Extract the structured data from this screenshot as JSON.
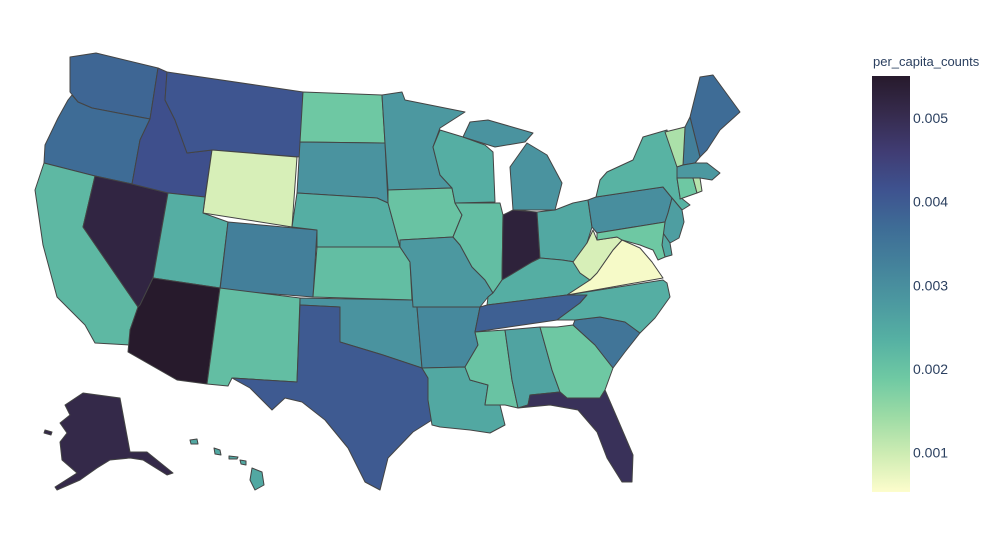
{
  "chart_data": {
    "type": "choropleth",
    "scope": "usa",
    "colorbar": {
      "title": "per_capita_counts",
      "range": [
        0.00053,
        0.0055
      ],
      "tickvals": [
        0.001,
        0.002,
        0.003,
        0.004,
        0.005
      ],
      "ticklabels": [
        "0.001",
        "0.002",
        "0.003",
        "0.004",
        "0.005"
      ],
      "colorscale": [
        "#fdfdcc",
        "#ceecb3",
        "#9cdba5",
        "#6fc9a3",
        "#56b1a3",
        "#4c99a0",
        "#44829b",
        "#3e6c96",
        "#3e528f",
        "#403c73",
        "#362b4d",
        "#271a2c"
      ]
    },
    "states": [
      {
        "state": "WA",
        "value": 0.0038
      },
      {
        "state": "OR",
        "value": 0.0037
      },
      {
        "state": "CA",
        "value": 0.0022
      },
      {
        "state": "NV",
        "value": 0.0052
      },
      {
        "state": "ID",
        "value": 0.0042
      },
      {
        "state": "MT",
        "value": 0.0041
      },
      {
        "state": "WY",
        "value": 0.0009
      },
      {
        "state": "UT",
        "value": 0.0024
      },
      {
        "state": "AZ",
        "value": 0.0055
      },
      {
        "state": "CO",
        "value": 0.0033
      },
      {
        "state": "NM",
        "value": 0.0021
      },
      {
        "state": "ND",
        "value": 0.0019
      },
      {
        "state": "SD",
        "value": 0.0029
      },
      {
        "state": "NE",
        "value": 0.0024
      },
      {
        "state": "KS",
        "value": 0.0021
      },
      {
        "state": "OK",
        "value": 0.0029
      },
      {
        "state": "TX",
        "value": 0.004
      },
      {
        "state": "MN",
        "value": 0.0028
      },
      {
        "state": "IA",
        "value": 0.002
      },
      {
        "state": "MO",
        "value": 0.0028
      },
      {
        "state": "AR",
        "value": 0.0031
      },
      {
        "state": "LA",
        "value": 0.0025
      },
      {
        "state": "WI",
        "value": 0.0024
      },
      {
        "state": "IL",
        "value": 0.0021
      },
      {
        "state": "MI",
        "value": 0.0029
      },
      {
        "state": "IN",
        "value": 0.0053
      },
      {
        "state": "OH",
        "value": 0.0025
      },
      {
        "state": "KY",
        "value": 0.0024
      },
      {
        "state": "TN",
        "value": 0.0039
      },
      {
        "state": "MS",
        "value": 0.002
      },
      {
        "state": "AL",
        "value": 0.0026
      },
      {
        "state": "GA",
        "value": 0.0019
      },
      {
        "state": "FL",
        "value": 0.0049
      },
      {
        "state": "SC",
        "value": 0.0035
      },
      {
        "state": "NC",
        "value": 0.0024
      },
      {
        "state": "VA",
        "value": 0.0006
      },
      {
        "state": "WV",
        "value": 0.0009
      },
      {
        "state": "PA",
        "value": 0.003
      },
      {
        "state": "NY",
        "value": 0.0023
      },
      {
        "state": "ME",
        "value": 0.0037
      },
      {
        "state": "NH",
        "value": 0.0033
      },
      {
        "state": "VT",
        "value": 0.0013
      },
      {
        "state": "MA",
        "value": 0.0028
      },
      {
        "state": "CT",
        "value": 0.0019
      },
      {
        "state": "RI",
        "value": 0.0012
      },
      {
        "state": "NJ",
        "value": 0.0027
      },
      {
        "state": "DE",
        "value": 0.0025
      },
      {
        "state": "MD",
        "value": 0.0019
      },
      {
        "state": "AK",
        "value": 0.0051
      },
      {
        "state": "HI",
        "value": 0.0025
      }
    ]
  }
}
